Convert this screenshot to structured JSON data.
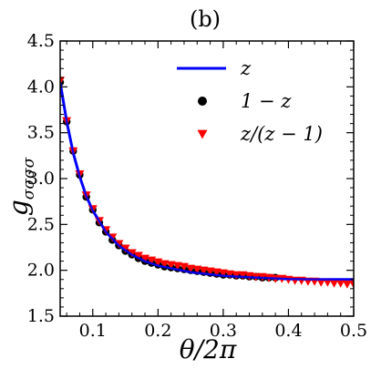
{
  "chart_data": {
    "type": "scatter",
    "title": "(b)",
    "xlabel": "θ/2π",
    "ylabel": "g_σσσσ",
    "ylabel_main": "g",
    "ylabel_sub": "σσσσ",
    "xlim": [
      0.05,
      0.5
    ],
    "ylim": [
      1.5,
      4.5
    ],
    "x_ticks": [
      0.1,
      0.2,
      0.3,
      0.4,
      0.5
    ],
    "x_tick_labels": [
      "0.1",
      "0.2",
      "0.3",
      "0.4",
      "0.5"
    ],
    "y_ticks": [
      1.5,
      2.0,
      2.5,
      3.0,
      3.5,
      4.0,
      4.5
    ],
    "y_tick_labels": [
      "1.5",
      "2.0",
      "2.5",
      "3.0",
      "3.5",
      "4.0",
      "4.5"
    ],
    "legend_position": "top-right",
    "series": [
      {
        "name": "z",
        "style": "line",
        "color": "#0000ff",
        "x": [
          0.05,
          0.06,
          0.07,
          0.08,
          0.09,
          0.1,
          0.12,
          0.14,
          0.16,
          0.18,
          0.2,
          0.25,
          0.3,
          0.35,
          0.4,
          0.45,
          0.5
        ],
        "y": [
          4.05,
          3.62,
          3.28,
          3.02,
          2.81,
          2.65,
          2.42,
          2.27,
          2.17,
          2.1,
          2.05,
          1.98,
          1.94,
          1.92,
          1.905,
          1.9,
          1.9
        ]
      },
      {
        "name": "1 − z",
        "style": "circle",
        "color": "#000000",
        "x": [
          0.05,
          0.06,
          0.07,
          0.08,
          0.09,
          0.1,
          0.11,
          0.12,
          0.13,
          0.14,
          0.15,
          0.16,
          0.17,
          0.18,
          0.19,
          0.2,
          0.21,
          0.22,
          0.23,
          0.24,
          0.25,
          0.26,
          0.27,
          0.28,
          0.29,
          0.3,
          0.31,
          0.32,
          0.33,
          0.34,
          0.35,
          0.36,
          0.37,
          0.38
        ],
        "y": [
          4.05,
          3.62,
          3.3,
          3.04,
          2.8,
          2.66,
          2.52,
          2.42,
          2.33,
          2.27,
          2.21,
          2.17,
          2.13,
          2.1,
          2.08,
          2.06,
          2.04,
          2.03,
          2.02,
          2.01,
          2.0,
          1.99,
          1.98,
          1.97,
          1.96,
          1.95,
          1.95,
          1.94,
          1.94,
          1.93,
          1.93,
          1.92,
          1.92,
          1.92
        ]
      },
      {
        "name": "z/(z − 1)",
        "style": "triangle-down",
        "color": "#ff0000",
        "x": [
          0.05,
          0.06,
          0.07,
          0.08,
          0.09,
          0.1,
          0.11,
          0.12,
          0.13,
          0.14,
          0.15,
          0.16,
          0.17,
          0.18,
          0.19,
          0.2,
          0.21,
          0.22,
          0.23,
          0.24,
          0.25,
          0.26,
          0.27,
          0.28,
          0.29,
          0.3,
          0.31,
          0.32,
          0.33,
          0.34,
          0.35,
          0.36,
          0.37,
          0.38,
          0.39,
          0.4,
          0.41,
          0.42,
          0.43,
          0.44,
          0.45,
          0.46,
          0.47,
          0.48,
          0.49,
          0.5
        ],
        "y": [
          4.07,
          3.63,
          3.3,
          3.05,
          2.82,
          2.67,
          2.54,
          2.44,
          2.36,
          2.29,
          2.24,
          2.19,
          2.16,
          2.13,
          2.11,
          2.09,
          2.07,
          2.06,
          2.05,
          2.04,
          2.02,
          2.01,
          2.0,
          1.99,
          1.98,
          1.97,
          1.96,
          1.95,
          1.95,
          1.94,
          1.93,
          1.93,
          1.92,
          1.91,
          1.91,
          1.9,
          1.89,
          1.89,
          1.88,
          1.88,
          1.87,
          1.87,
          1.86,
          1.86,
          1.85,
          1.85
        ]
      }
    ]
  }
}
